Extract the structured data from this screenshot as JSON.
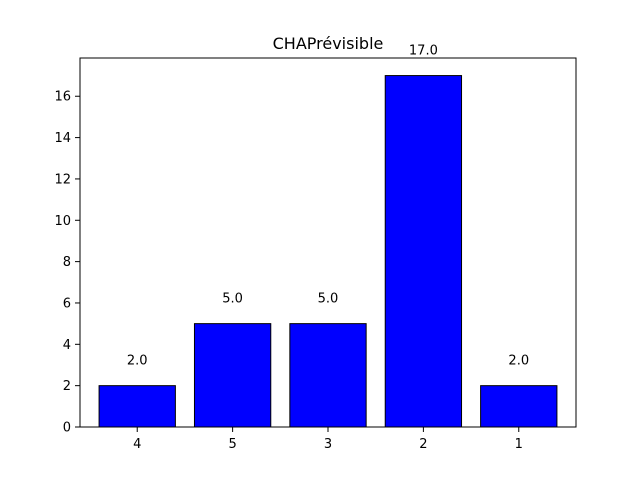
{
  "chart_data": {
    "type": "bar",
    "title": "CHAPrévisible",
    "xlabel": "",
    "ylabel": "",
    "categories": [
      "4",
      "5",
      "3",
      "2",
      "1"
    ],
    "values": [
      2.0,
      5.0,
      5.0,
      17.0,
      2.0
    ],
    "data_labels": [
      "2.0",
      "5.0",
      "5.0",
      "17.0",
      "2.0"
    ],
    "ylim": [
      0,
      17.85
    ],
    "yticks": [
      0,
      2,
      4,
      6,
      8,
      10,
      12,
      14,
      16
    ],
    "bar_color": "#0000ff",
    "bar_edge_color": "#000000",
    "grid": false,
    "legend": "none"
  }
}
